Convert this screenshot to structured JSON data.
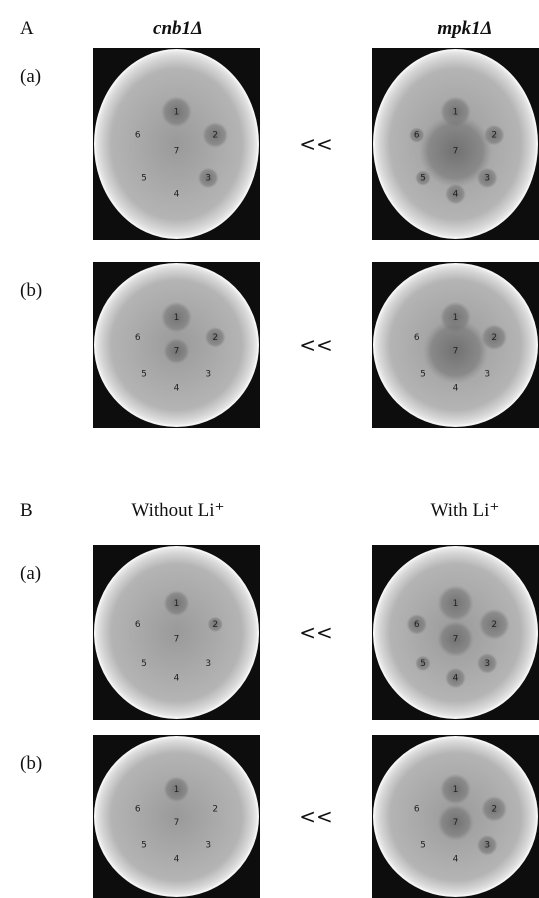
{
  "panels": [
    {
      "label": "A",
      "headers": [
        "cnb1Δ",
        "mpk1Δ"
      ],
      "rows": [
        {
          "label": "(a)",
          "comparison": "<<",
          "plates": [
            [
              "1",
              "2",
              "3",
              "4",
              "5",
              "6",
              "7"
            ],
            [
              "1",
              "2",
              "3",
              "4",
              "5",
              "6",
              "7"
            ]
          ]
        },
        {
          "label": "(b)",
          "comparison": "<<",
          "plates": [
            [
              "1",
              "2",
              "3",
              "4",
              "5",
              "6",
              "7"
            ],
            [
              "1",
              "2",
              "3",
              "4",
              "5",
              "6",
              "7"
            ]
          ]
        }
      ]
    },
    {
      "label": "B",
      "headers": [
        "Without Li⁺",
        "With Li⁺"
      ],
      "rows": [
        {
          "label": "(a)",
          "comparison": "<<",
          "plates": [
            [
              "1",
              "2",
              "3",
              "4",
              "5",
              "6",
              "7"
            ],
            [
              "1",
              "2",
              "3",
              "4",
              "5",
              "6",
              "7"
            ]
          ]
        },
        {
          "label": "(b)",
          "comparison": "<<",
          "plates": [
            [
              "1",
              "2",
              "3",
              "4",
              "5",
              "6",
              "7"
            ],
            [
              "1",
              "2",
              "3",
              "4",
              "5",
              "6",
              "7"
            ]
          ]
        }
      ]
    }
  ]
}
